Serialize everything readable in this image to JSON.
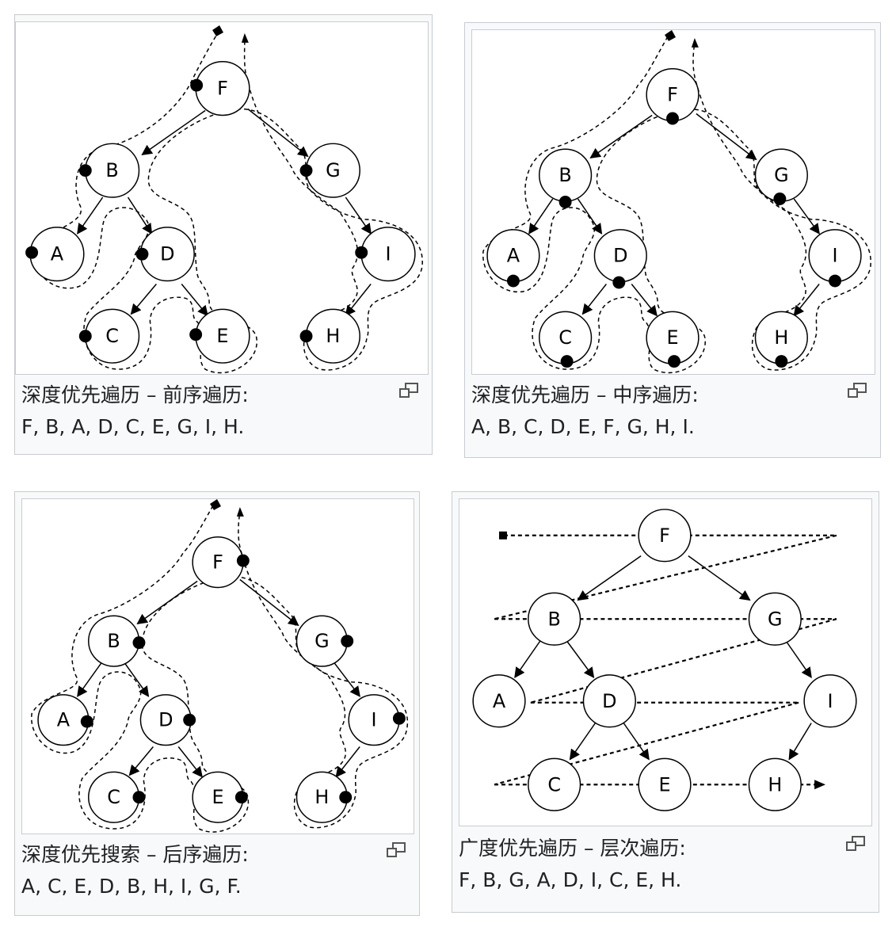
{
  "panels": [
    {
      "id": "preorder",
      "caption_title": "深度优先遍历 – 前序遍历:",
      "caption_sequence": "F, B, A, D, C, E, G, I, H."
    },
    {
      "id": "inorder",
      "caption_title": "深度优先遍历 – 中序遍历:",
      "caption_sequence": "A, B, C, D, E, F, G, H, I."
    },
    {
      "id": "postorder",
      "caption_title": "深度优先搜索 – 后序遍历:",
      "caption_sequence": "A, C, E, D, B, H, I, G, F."
    },
    {
      "id": "levelorder",
      "caption_title": "广度优先遍历 – 层次遍历:",
      "caption_sequence": "F, B, G, A, D, I, C, E, H."
    }
  ],
  "tree": {
    "nodes": [
      "F",
      "B",
      "G",
      "A",
      "D",
      "I",
      "C",
      "E",
      "H"
    ],
    "edges": [
      [
        "F",
        "B"
      ],
      [
        "F",
        "G"
      ],
      [
        "B",
        "A"
      ],
      [
        "B",
        "D"
      ],
      [
        "D",
        "C"
      ],
      [
        "D",
        "E"
      ],
      [
        "G",
        "I"
      ],
      [
        "I",
        "H"
      ]
    ]
  },
  "icons": {
    "magnify": "magnify-icon"
  },
  "colors": {
    "frame_bg": "#f8f9fa",
    "border": "#c8ccd1",
    "text": "#202122"
  }
}
